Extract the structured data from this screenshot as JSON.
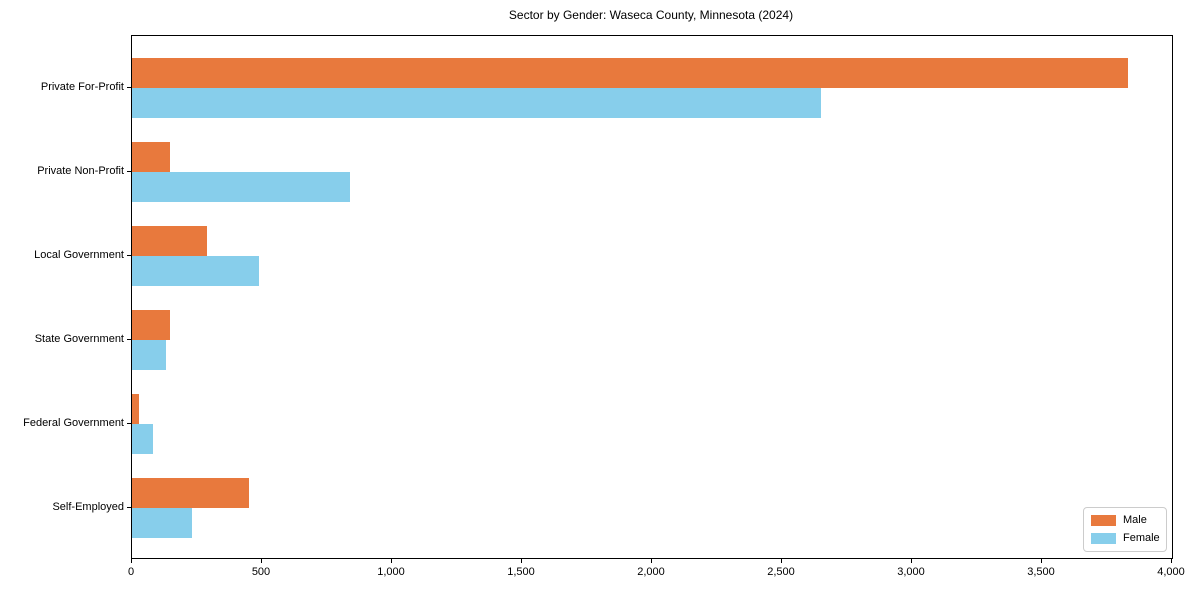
{
  "title": "Sector by Gender: Waseca County, Minnesota (2024)",
  "colors": {
    "male": "#E8793D",
    "female": "#87CEEB",
    "axis": "#000000",
    "legend_border": "#cccccc",
    "background": "#ffffff"
  },
  "legend": {
    "position": "lower right",
    "entries": [
      {
        "label": "Male",
        "color": "#E8793D"
      },
      {
        "label": "Female",
        "color": "#87CEEB"
      }
    ]
  },
  "chart_data": {
    "type": "bar",
    "orientation": "horizontal",
    "title": "Sector by Gender: Waseca County, Minnesota (2024)",
    "xlabel": "",
    "ylabel": "",
    "categories": [
      "Private For-Profit",
      "Private Non-Profit",
      "Local Government",
      "State Government",
      "Federal Government",
      "Self-Employed"
    ],
    "series": [
      {
        "name": "Male",
        "color": "#E8793D",
        "values": [
          3830,
          145,
          290,
          145,
          25,
          450
        ]
      },
      {
        "name": "Female",
        "color": "#87CEEB",
        "values": [
          2650,
          840,
          490,
          130,
          80,
          230
        ]
      }
    ],
    "xlim": [
      0,
      4000
    ],
    "xticks": [
      0,
      500,
      1000,
      1500,
      2000,
      2500,
      3000,
      3500,
      4000
    ],
    "xtick_labels": [
      "0",
      "500",
      "1,000",
      "1,500",
      "2,000",
      "2,500",
      "3,000",
      "3,500",
      "4,000"
    ],
    "grid": false,
    "legend_position": "lower right"
  }
}
